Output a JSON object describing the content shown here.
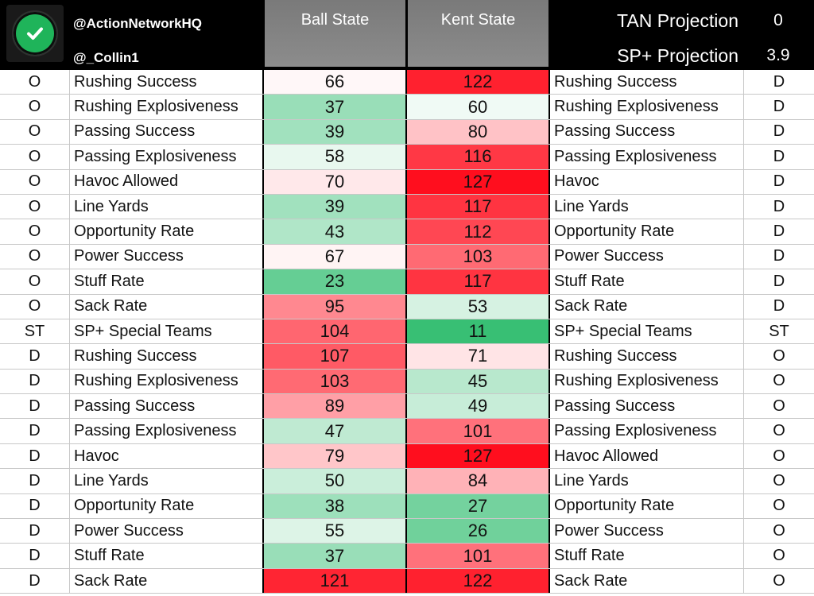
{
  "header": {
    "handle_primary": "@ActionNetworkHQ",
    "handle_secondary": "@_Collin1",
    "team_a": "Ball State",
    "team_b": "Kent State",
    "tan_projection_label": "TAN Projection",
    "tan_projection_value": "0",
    "sp_projection_label": "SP+ Projection",
    "sp_projection_value": "3.9",
    "logo_icon": "checkmark-circle-icon"
  },
  "colors": {
    "header_bg": "#000000",
    "team_header_gray": "#808080",
    "scale_best": "#12b35a",
    "scale_mid": "#ffffff",
    "scale_worst": "#ff0a1a"
  },
  "rows": [
    {
      "side_a": "O",
      "stat_a": "Rushing Success",
      "val_a": 66,
      "val_b": 122,
      "stat_b": "Rushing Success",
      "side_b": "D"
    },
    {
      "side_a": "O",
      "stat_a": "Rushing Explosiveness",
      "val_a": 37,
      "val_b": 60,
      "stat_b": "Rushing Explosiveness",
      "side_b": "D"
    },
    {
      "side_a": "O",
      "stat_a": "Passing Success",
      "val_a": 39,
      "val_b": 80,
      "stat_b": "Passing Success",
      "side_b": "D"
    },
    {
      "side_a": "O",
      "stat_a": "Passing Explosiveness",
      "val_a": 58,
      "val_b": 116,
      "stat_b": "Passing Explosiveness",
      "side_b": "D"
    },
    {
      "side_a": "O",
      "stat_a": "Havoc Allowed",
      "val_a": 70,
      "val_b": 127,
      "stat_b": "Havoc",
      "side_b": "D"
    },
    {
      "side_a": "O",
      "stat_a": "Line Yards",
      "val_a": 39,
      "val_b": 117,
      "stat_b": "Line Yards",
      "side_b": "D"
    },
    {
      "side_a": "O",
      "stat_a": "Opportunity Rate",
      "val_a": 43,
      "val_b": 112,
      "stat_b": "Opportunity Rate",
      "side_b": "D"
    },
    {
      "side_a": "O",
      "stat_a": "Power Success",
      "val_a": 67,
      "val_b": 103,
      "stat_b": "Power Success",
      "side_b": "D"
    },
    {
      "side_a": "O",
      "stat_a": "Stuff Rate",
      "val_a": 23,
      "val_b": 117,
      "stat_b": "Stuff Rate",
      "side_b": "D"
    },
    {
      "side_a": "O",
      "stat_a": "Sack Rate",
      "val_a": 95,
      "val_b": 53,
      "stat_b": "Sack Rate",
      "side_b": "D"
    },
    {
      "side_a": "ST",
      "stat_a": "SP+ Special Teams",
      "val_a": 104,
      "val_b": 11,
      "stat_b": "SP+ Special Teams",
      "side_b": "ST"
    },
    {
      "side_a": "D",
      "stat_a": "Rushing Success",
      "val_a": 107,
      "val_b": 71,
      "stat_b": "Rushing Success",
      "side_b": "O"
    },
    {
      "side_a": "D",
      "stat_a": "Rushing Explosiveness",
      "val_a": 103,
      "val_b": 45,
      "stat_b": "Rushing Explosiveness",
      "side_b": "O"
    },
    {
      "side_a": "D",
      "stat_a": "Passing Success",
      "val_a": 89,
      "val_b": 49,
      "stat_b": "Passing Success",
      "side_b": "O"
    },
    {
      "side_a": "D",
      "stat_a": "Passing Explosiveness",
      "val_a": 47,
      "val_b": 101,
      "stat_b": "Passing Explosiveness",
      "side_b": "O"
    },
    {
      "side_a": "D",
      "stat_a": "Havoc",
      "val_a": 79,
      "val_b": 127,
      "stat_b": "Havoc Allowed",
      "side_b": "O"
    },
    {
      "side_a": "D",
      "stat_a": "Line Yards",
      "val_a": 50,
      "val_b": 84,
      "stat_b": "Line Yards",
      "side_b": "O"
    },
    {
      "side_a": "D",
      "stat_a": "Opportunity Rate",
      "val_a": 38,
      "val_b": 27,
      "stat_b": "Opportunity Rate",
      "side_b": "O"
    },
    {
      "side_a": "D",
      "stat_a": "Power Success",
      "val_a": 55,
      "val_b": 26,
      "stat_b": "Power Success",
      "side_b": "O"
    },
    {
      "side_a": "D",
      "stat_a": "Stuff Rate",
      "val_a": 37,
      "val_b": 101,
      "stat_b": "Stuff Rate",
      "side_b": "O"
    },
    {
      "side_a": "D",
      "stat_a": "Sack Rate",
      "val_a": 121,
      "val_b": 122,
      "stat_b": "Sack Rate",
      "side_b": "O"
    }
  ]
}
